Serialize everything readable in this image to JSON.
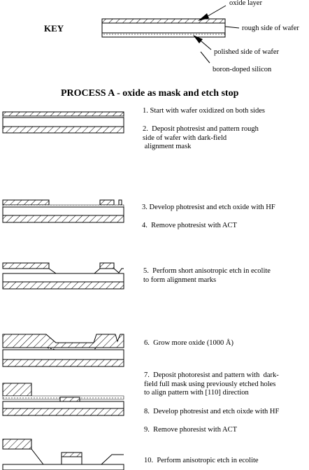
{
  "key": {
    "title": "KEY",
    "labels": {
      "oxide": "oxide layer",
      "rough": "rough side of wafer",
      "polished": "polished side of wafer",
      "boron": "boron-doped silicon"
    }
  },
  "process": {
    "title": "PROCESS A - oxide as mask and etch stop",
    "steps": [
      "1. Start with wafer oxidized on both sides",
      "2.  Deposit photresist and pattern rough\nside of wafer with dark-field\n alignment mask",
      "3. Develop photresist and etch oxide with HF",
      "4.  Remove photresist with ACT",
      "5.  Perform short anisotropic etch in ecolite\nto form alignment marks",
      "6.  Grow more oxide (1000 Å)",
      "7.  Deposit photoresist and pattern with  dark-\nfield full mask using previously etched holes\nto align pattern with [110] direction",
      "8.  Develop photresist and etch oixde with HF",
      "9.  Remove phoresist with ACT",
      "10.  Perform anisotropic etch in ecolite"
    ]
  }
}
